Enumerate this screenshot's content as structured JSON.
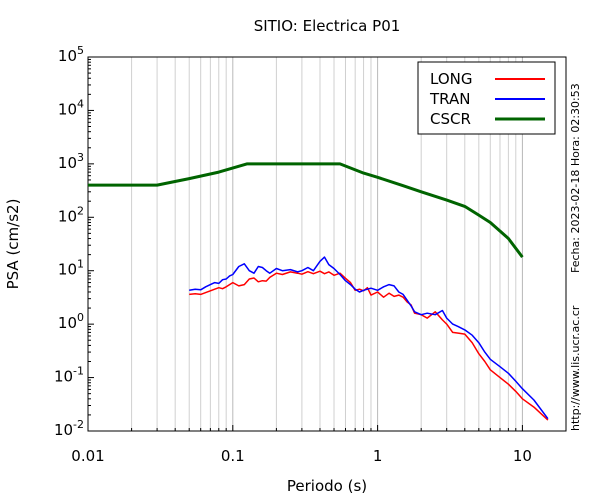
{
  "chart_data": {
    "type": "line",
    "title": "SITIO: Electrica P01",
    "xlabel": "Periodo (s)",
    "ylabel": "PSA (cm/s2)",
    "x_scale": "log",
    "y_scale": "log",
    "xlim": [
      0.01,
      20
    ],
    "ylim": [
      0.01,
      100000
    ],
    "x_ticks": [
      {
        "value": 0.01,
        "label": "0.01"
      },
      {
        "value": 0.1,
        "label": "0.1"
      },
      {
        "value": 1,
        "label": "1"
      },
      {
        "value": 10,
        "label": "10"
      }
    ],
    "y_ticks": [
      {
        "value": 0.01,
        "base": "10",
        "exp": "-2"
      },
      {
        "value": 0.1,
        "base": "10",
        "exp": "-1"
      },
      {
        "value": 1,
        "base": "10",
        "exp": "0"
      },
      {
        "value": 10,
        "base": "10",
        "exp": "1"
      },
      {
        "value": 100,
        "base": "10",
        "exp": "2"
      },
      {
        "value": 1000,
        "base": "10",
        "exp": "3"
      },
      {
        "value": 10000,
        "base": "10",
        "exp": "4"
      },
      {
        "value": 100000,
        "base": "10",
        "exp": "5"
      }
    ],
    "grid": "vertical minor and major lines",
    "legend_position": "top-right",
    "series": [
      {
        "name": "LONG",
        "color": "#ff0000",
        "x": [
          0.05,
          0.055,
          0.06,
          0.065,
          0.07,
          0.075,
          0.08,
          0.085,
          0.09,
          0.095,
          0.1,
          0.11,
          0.12,
          0.13,
          0.14,
          0.15,
          0.16,
          0.17,
          0.18,
          0.2,
          0.22,
          0.25,
          0.28,
          0.3,
          0.33,
          0.36,
          0.4,
          0.43,
          0.46,
          0.5,
          0.55,
          0.6,
          0.65,
          0.7,
          0.75,
          0.8,
          0.85,
          0.9,
          1.0,
          1.1,
          1.2,
          1.3,
          1.4,
          1.5,
          1.6,
          1.7,
          1.8,
          2.0,
          2.2,
          2.5,
          2.8,
          3.0,
          3.3,
          3.6,
          4.0,
          4.5,
          5.0,
          5.5,
          6.0,
          7.0,
          8.0,
          9.0,
          10.0,
          12.0,
          15.0
        ],
        "y": [
          3.6,
          3.7,
          3.6,
          3.9,
          4.2,
          4.5,
          4.8,
          4.6,
          5.0,
          5.5,
          6.0,
          5.2,
          5.5,
          7.0,
          7.3,
          6.2,
          6.5,
          6.4,
          7.5,
          9.0,
          8.5,
          9.5,
          9.0,
          8.6,
          9.6,
          8.8,
          9.8,
          8.8,
          9.5,
          8.2,
          9.0,
          7.2,
          6.0,
          4.3,
          4.5,
          4.2,
          4.8,
          3.5,
          4.0,
          3.2,
          3.8,
          3.3,
          3.5,
          3.2,
          2.6,
          2.3,
          1.6,
          1.5,
          1.3,
          1.7,
          1.2,
          1.0,
          0.7,
          0.68,
          0.65,
          0.45,
          0.28,
          0.2,
          0.14,
          0.1,
          0.075,
          0.055,
          0.04,
          0.028,
          0.016
        ]
      },
      {
        "name": "TRAN",
        "color": "#0000ff",
        "x": [
          0.05,
          0.055,
          0.06,
          0.065,
          0.07,
          0.075,
          0.08,
          0.085,
          0.09,
          0.095,
          0.1,
          0.11,
          0.12,
          0.13,
          0.14,
          0.15,
          0.16,
          0.17,
          0.18,
          0.2,
          0.22,
          0.25,
          0.28,
          0.3,
          0.33,
          0.36,
          0.4,
          0.43,
          0.46,
          0.5,
          0.55,
          0.6,
          0.65,
          0.7,
          0.75,
          0.8,
          0.85,
          0.9,
          1.0,
          1.1,
          1.2,
          1.3,
          1.4,
          1.5,
          1.6,
          1.7,
          1.8,
          2.0,
          2.2,
          2.5,
          2.8,
          3.0,
          3.3,
          3.6,
          4.0,
          4.5,
          5.0,
          5.5,
          6.0,
          7.0,
          8.0,
          9.0,
          10.0,
          12.0,
          15.0
        ],
        "y": [
          4.3,
          4.5,
          4.4,
          5.0,
          5.5,
          6.0,
          5.8,
          6.8,
          7.0,
          8.0,
          8.5,
          12.0,
          13.5,
          10.0,
          9.0,
          12.0,
          11.5,
          10.0,
          9.0,
          11.0,
          10.0,
          10.5,
          9.5,
          10.0,
          11.5,
          10.0,
          15.0,
          18.0,
          13.0,
          11.0,
          8.5,
          6.5,
          5.5,
          4.5,
          4.0,
          4.3,
          4.5,
          4.7,
          4.3,
          5.0,
          5.5,
          5.2,
          4.0,
          3.6,
          2.8,
          2.2,
          1.7,
          1.5,
          1.6,
          1.5,
          1.8,
          1.3,
          1.0,
          0.9,
          0.78,
          0.62,
          0.45,
          0.3,
          0.22,
          0.16,
          0.12,
          0.085,
          0.062,
          0.038,
          0.017
        ]
      },
      {
        "name": "CSCR",
        "color": "#006400",
        "x": [
          0.01,
          0.03,
          0.05,
          0.08,
          0.125,
          0.2,
          0.3,
          0.4,
          0.55,
          0.8,
          1.0,
          1.5,
          2.0,
          3.0,
          4.0,
          5.0,
          6.0,
          8.0,
          10.0
        ],
        "y": [
          400,
          400,
          530,
          700,
          1000,
          1000,
          1000,
          1000,
          1000,
          670,
          560,
          390,
          300,
          210,
          160,
          110,
          80,
          40,
          18
        ]
      }
    ]
  },
  "side_text": {
    "date": "Fecha: 2023-02-18 Hora: 02:30:53",
    "url": "http://www.lis.ucr.ac.cr"
  }
}
